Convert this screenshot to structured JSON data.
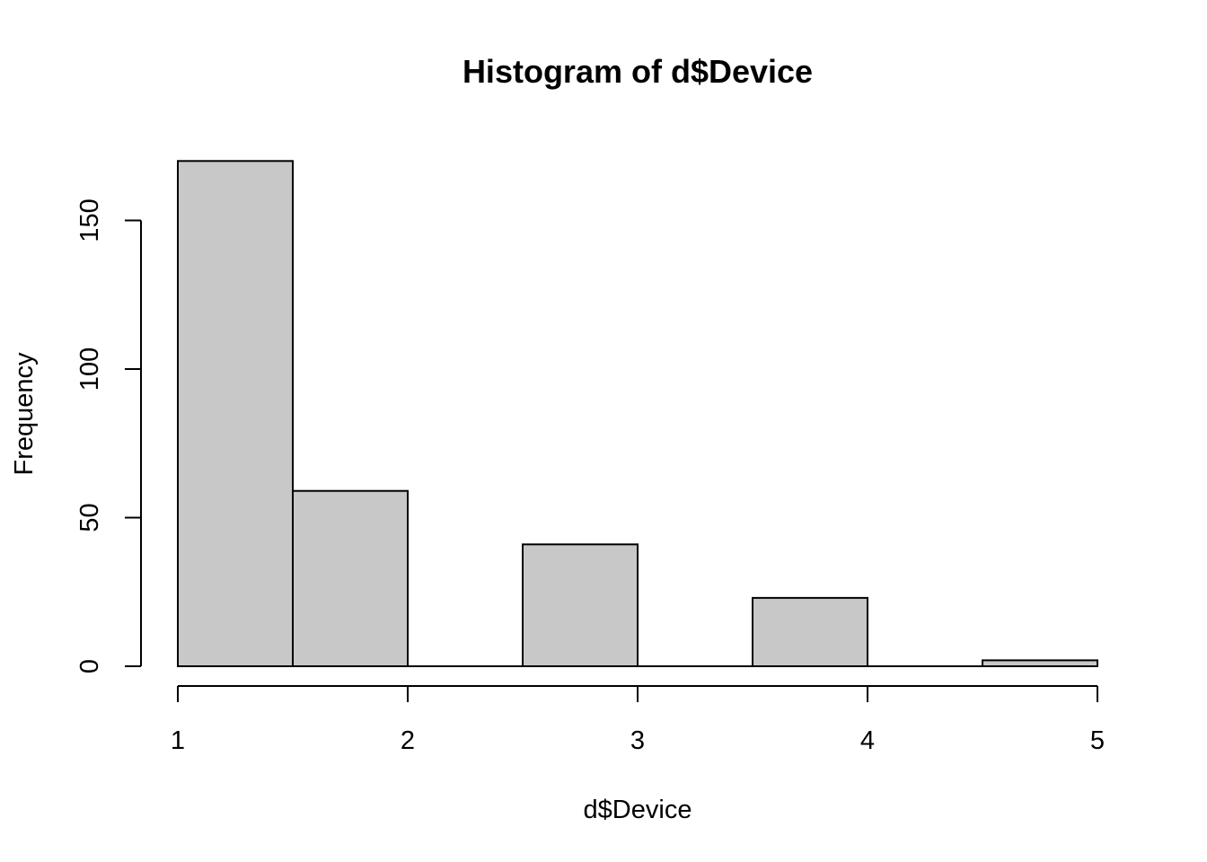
{
  "chart_data": {
    "type": "bar",
    "title": "Histogram of d$Device",
    "xlabel": "d$Device",
    "ylabel": "Frequency",
    "bins": [
      {
        "start": 1.0,
        "end": 1.5,
        "count": 170
      },
      {
        "start": 1.5,
        "end": 2.0,
        "count": 59
      },
      {
        "start": 2.0,
        "end": 2.5,
        "count": 0
      },
      {
        "start": 2.5,
        "end": 3.0,
        "count": 41
      },
      {
        "start": 3.0,
        "end": 3.5,
        "count": 0
      },
      {
        "start": 3.5,
        "end": 4.0,
        "count": 23
      },
      {
        "start": 4.0,
        "end": 4.5,
        "count": 0
      },
      {
        "start": 4.5,
        "end": 5.0,
        "count": 2
      }
    ],
    "xlim": [
      1,
      5
    ],
    "ylim": [
      0,
      170
    ],
    "xticks": [
      1,
      2,
      3,
      4,
      5
    ],
    "yticks": [
      0,
      50,
      100,
      150
    ],
    "bar_color": "#c8c8c8",
    "grid": false
  }
}
